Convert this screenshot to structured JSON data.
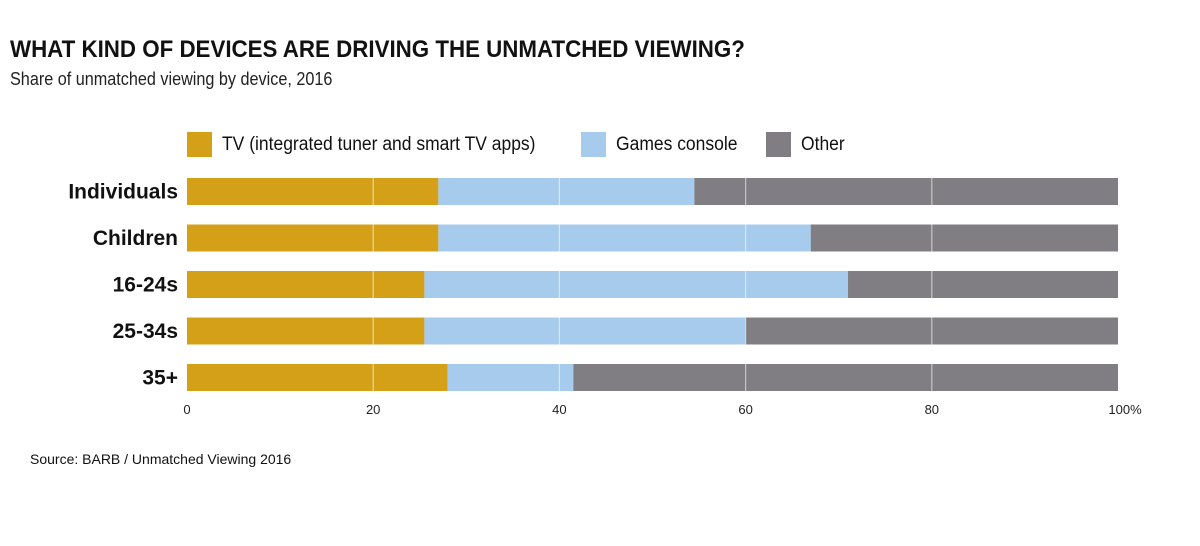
{
  "chart_data": {
    "type": "bar",
    "orientation": "horizontal",
    "stacked": true,
    "title": "WHAT KIND OF DEVICES ARE DRIVING THE UNMATCHED VIEWING?",
    "subtitle": "Share of unmatched viewing by device, 2016",
    "categories": [
      "Individuals",
      "Children",
      "16-24s",
      "25-34s",
      "35+"
    ],
    "series": [
      {
        "name": "TV (integrated tuner and smart TV apps)",
        "color": "#D4A017",
        "values": [
          27,
          27,
          25.5,
          25.5,
          28
        ]
      },
      {
        "name": "Games console",
        "color": "#A7CBEC",
        "values": [
          27.5,
          40,
          45.5,
          34.5,
          13.5
        ]
      },
      {
        "name": "Other",
        "color": "#807E82",
        "values": [
          45.5,
          33,
          29,
          40,
          58.5
        ]
      }
    ],
    "xlim": [
      0,
      100
    ],
    "xticks": [
      0,
      20,
      40,
      60,
      80,
      100
    ],
    "xtick_labels": [
      "0",
      "20",
      "40",
      "60",
      "80",
      "100%"
    ],
    "xlabel": "",
    "ylabel": "",
    "grid": true,
    "legend_position": "top",
    "source": "Source: BARB / Unmatched Viewing 2016"
  }
}
